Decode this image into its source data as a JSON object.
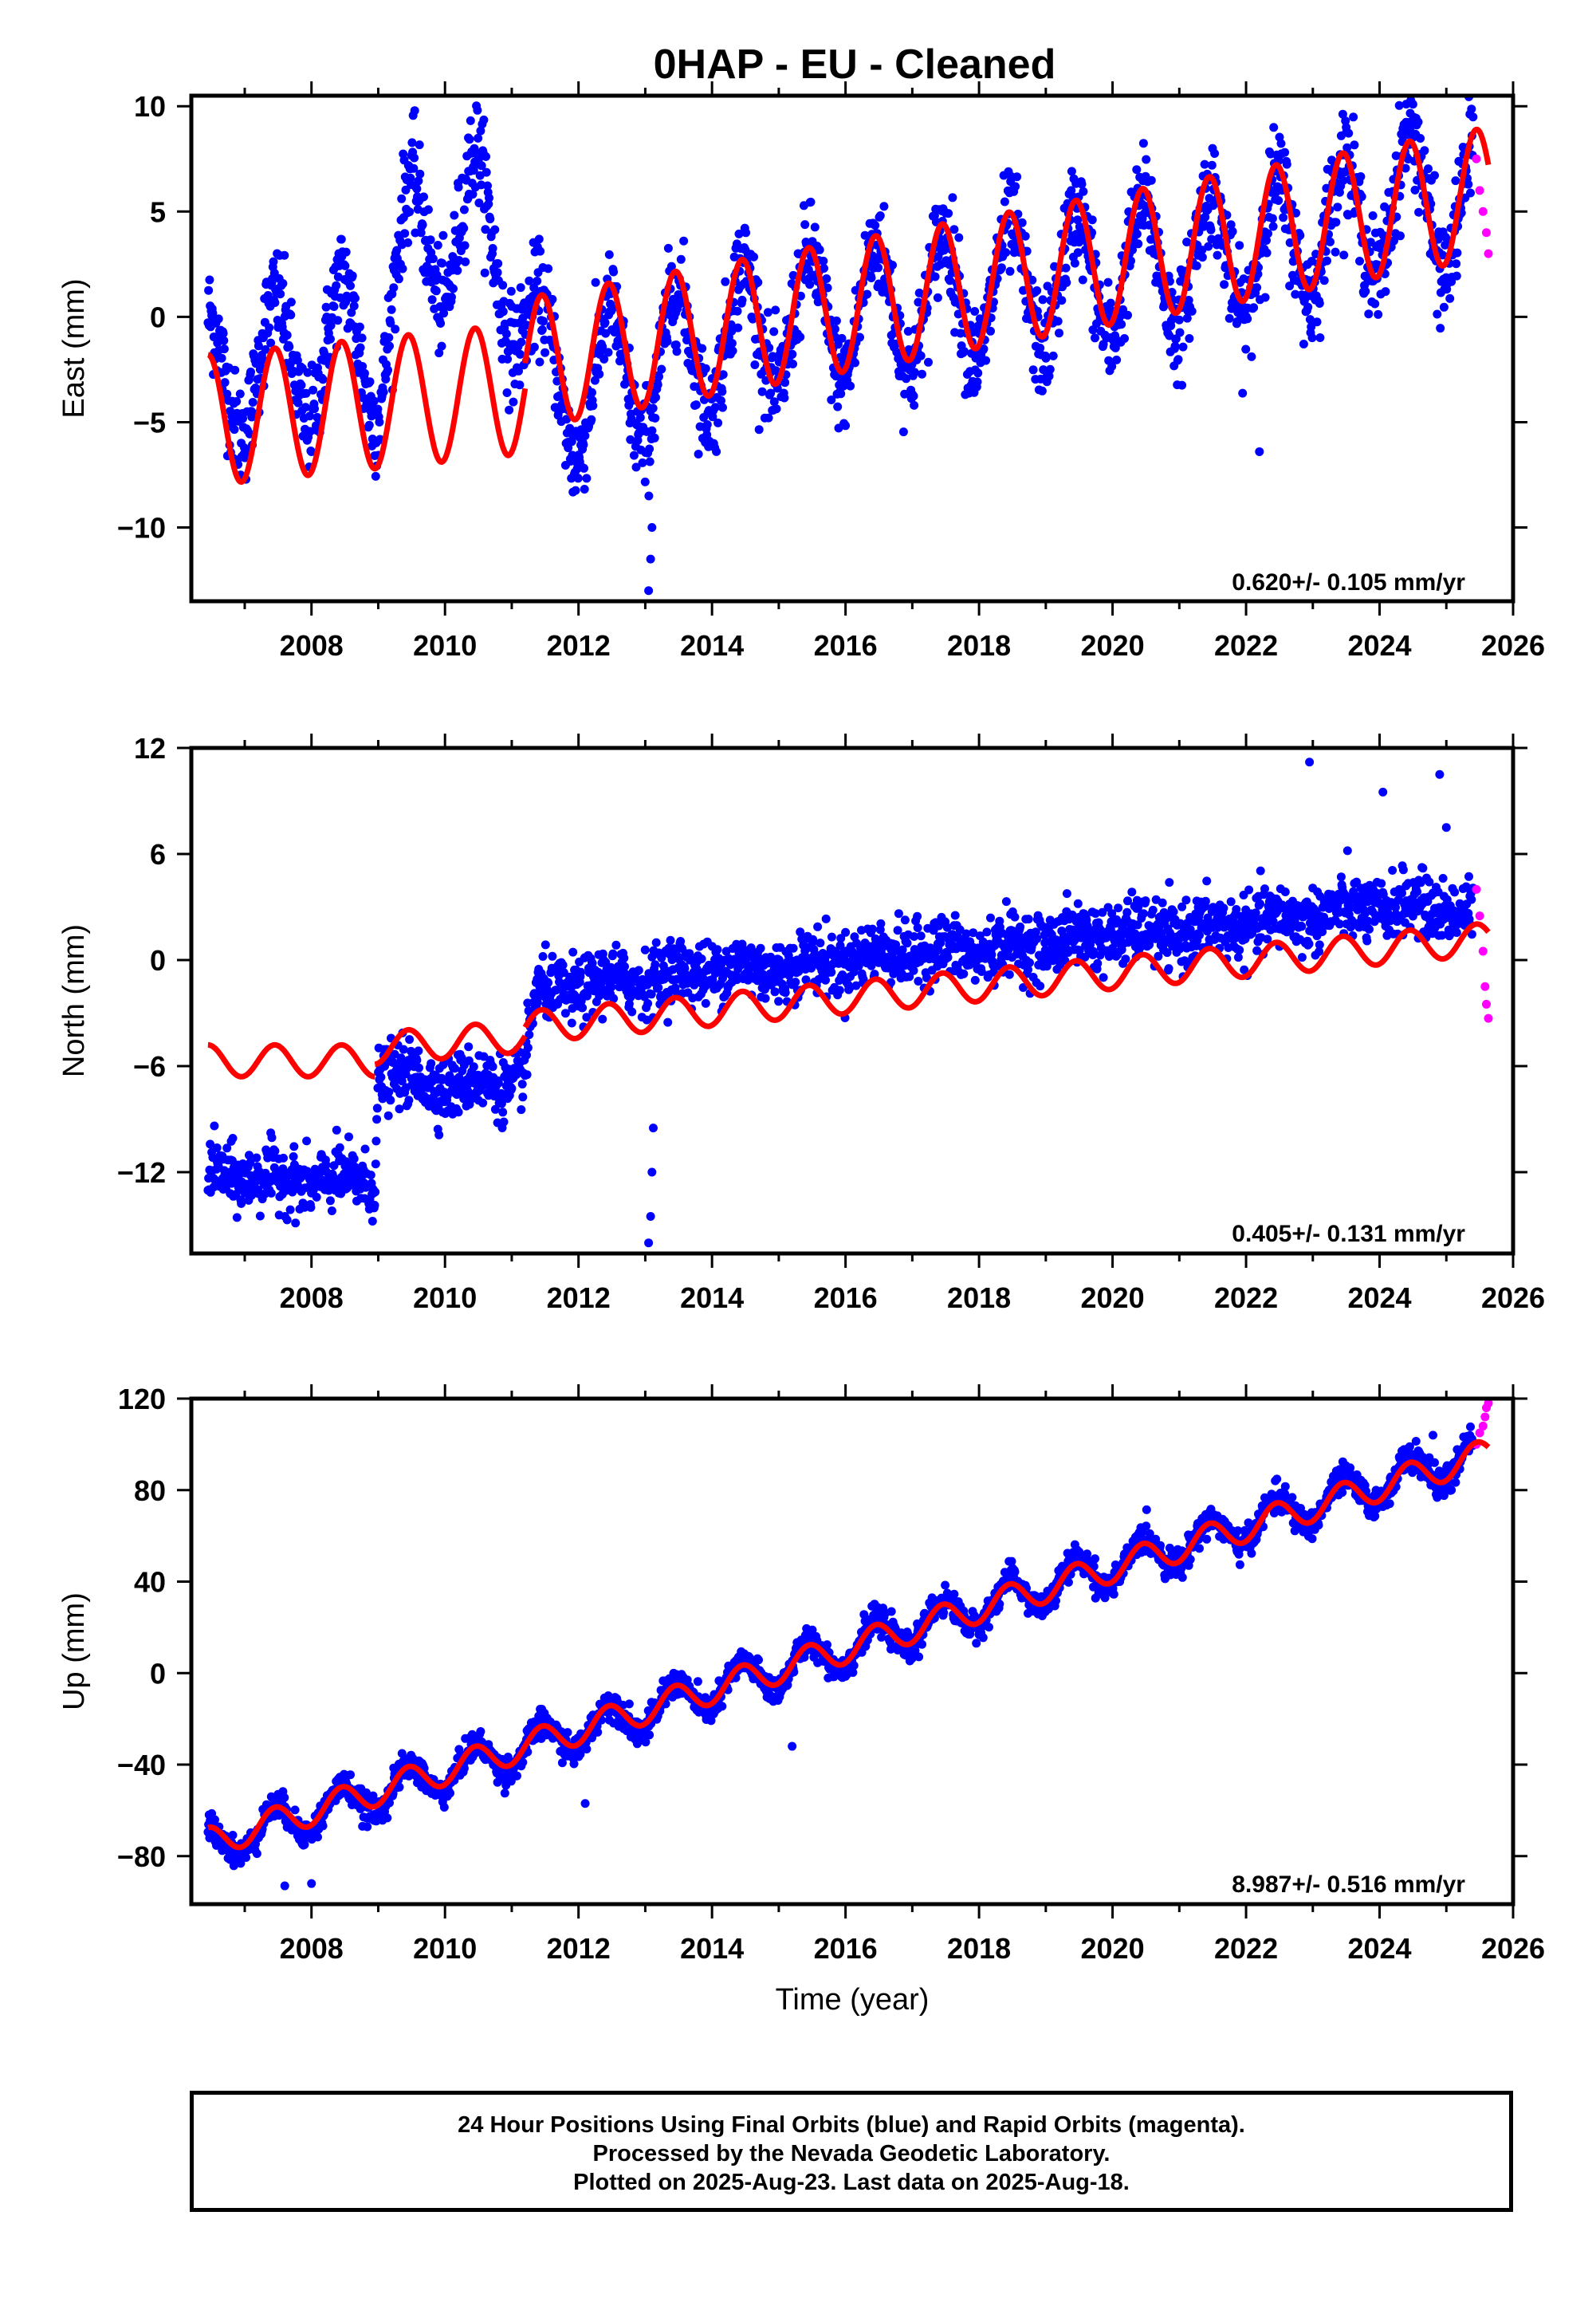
{
  "title": "0HAP  - EU - Cleaned",
  "footer": {
    "line1": "24 Hour Positions Using Final Orbits (blue) and Rapid Orbits (magenta).",
    "line2": "Processed by the Nevada Geodetic Laboratory.",
    "line3": "Plotted on 2025-Aug-23. Last data on 2025-Aug-18."
  },
  "colors": {
    "final": "#0000ff",
    "rapid": "#ff00ff",
    "model": "#ff0000",
    "axes": "#000000"
  },
  "chart_data": [
    {
      "type": "scatter",
      "component": "east",
      "ylabel": "East (mm)",
      "xlabel": "",
      "xlim": [
        2006.2,
        2026.0
      ],
      "ylim": [
        -13.5,
        10.5
      ],
      "xticks": [
        2008,
        2010,
        2012,
        2014,
        2016,
        2018,
        2020,
        2022,
        2024,
        2026
      ],
      "yticks": [
        10,
        5,
        0,
        -5,
        -10
      ],
      "rate_label": "0.620+/- 0.105 mm/yr",
      "data_start": 2006.45,
      "final_end": 2025.4,
      "rapid_end": 2025.63,
      "series": [
        {
          "key": "final",
          "description": "24 hour positions, final orbits (blue), approximate smoothed trend",
          "points": [
            [
              2006.5,
              -2.5
            ],
            [
              2007.0,
              -3.0
            ],
            [
              2007.5,
              -1.5
            ],
            [
              2008.0,
              -2.5
            ],
            [
              2008.5,
              -0.5
            ],
            [
              2009.0,
              -2.5
            ],
            [
              2009.5,
              4.5
            ],
            [
              2010.0,
              3.0
            ],
            [
              2010.5,
              5.5
            ],
            [
              2011.0,
              1.0
            ],
            [
              2011.3,
              -1.0
            ],
            [
              2012.0,
              -4.5
            ],
            [
              2012.5,
              -2.0
            ],
            [
              2013.0,
              -3.5
            ],
            [
              2013.5,
              -1.0
            ],
            [
              2014.0,
              -2.0
            ],
            [
              2014.5,
              0.0
            ],
            [
              2015.0,
              -1.0
            ],
            [
              2015.5,
              0.5
            ],
            [
              2016.0,
              -0.5
            ],
            [
              2016.5,
              1.0
            ],
            [
              2017.0,
              0.0
            ],
            [
              2017.5,
              1.5
            ],
            [
              2018.0,
              0.5
            ],
            [
              2018.5,
              2.0
            ],
            [
              2019.0,
              1.0
            ],
            [
              2019.5,
              2.5
            ],
            [
              2020.0,
              1.5
            ],
            [
              2020.5,
              3.0
            ],
            [
              2021.0,
              2.0
            ],
            [
              2021.5,
              3.5
            ],
            [
              2022.0,
              2.5
            ],
            [
              2022.5,
              4.0
            ],
            [
              2023.0,
              3.5
            ],
            [
              2023.5,
              5.0
            ],
            [
              2024.0,
              4.5
            ],
            [
              2024.5,
              6.5
            ],
            [
              2025.0,
              4.5
            ],
            [
              2025.4,
              6.0
            ]
          ],
          "scatter_mm": 2.2,
          "annual_amp": 2.6,
          "outliers": [
            [
              2013.05,
              -13.0
            ],
            [
              2013.08,
              -11.5
            ],
            [
              2013.1,
              -10.0
            ],
            [
              2022.2,
              -6.4
            ],
            [
              2024.4,
              10.1
            ],
            [
              2023.5,
              9.0
            ],
            [
              2010.35,
              8.5
            ]
          ]
        },
        {
          "key": "rapid",
          "description": "rapid orbits (magenta)",
          "points": [
            [
              2025.45,
              7.5
            ],
            [
              2025.5,
              6.0
            ],
            [
              2025.55,
              5.0
            ],
            [
              2025.6,
              4.0
            ],
            [
              2025.63,
              3.0
            ]
          ]
        },
        {
          "key": "model",
          "description": "fitted model (red)",
          "segments": [
            [
              2006.45,
              2011.2
            ],
            [
              2011.2,
              2025.63
            ]
          ],
          "seg1_offset": [
            -4.9,
            -3.4
          ],
          "seg2_offset": [
            -2.2,
            5.9
          ],
          "annual_amp": 3.1
        }
      ]
    },
    {
      "type": "scatter",
      "component": "north",
      "ylabel": "North (mm)",
      "xlabel": "",
      "xlim": [
        2006.2,
        2026.0
      ],
      "ylim": [
        -16.6,
        12.0
      ],
      "xticks": [
        2008,
        2010,
        2012,
        2014,
        2016,
        2018,
        2020,
        2022,
        2024,
        2026
      ],
      "yticks": [
        12,
        6,
        0,
        -6,
        -12
      ],
      "rate_label": "0.405+/- 0.131 mm/yr",
      "data_start": 2006.45,
      "final_end": 2025.4,
      "rapid_end": 2025.63,
      "series": [
        {
          "key": "final",
          "description": "24 hour positions, final orbits (blue), approximate smoothed trend",
          "points": [
            [
              2006.5,
              -12.0
            ],
            [
              2007.5,
              -12.5
            ],
            [
              2008.5,
              -12.5
            ],
            [
              2008.95,
              -12.5
            ],
            [
              2009.0,
              -6.5
            ],
            [
              2010.0,
              -7.0
            ],
            [
              2011.0,
              -7.0
            ],
            [
              2011.2,
              -6.0
            ],
            [
              2011.35,
              -2.0
            ],
            [
              2012.0,
              -1.5
            ],
            [
              2013.0,
              -1.0
            ],
            [
              2014.0,
              -0.5
            ],
            [
              2015.0,
              -0.5
            ],
            [
              2016.0,
              0.0
            ],
            [
              2017.0,
              0.5
            ],
            [
              2018.0,
              0.5
            ],
            [
              2019.0,
              1.0
            ],
            [
              2020.0,
              1.5
            ],
            [
              2021.0,
              1.5
            ],
            [
              2022.0,
              2.0
            ],
            [
              2023.0,
              2.5
            ],
            [
              2024.0,
              3.0
            ],
            [
              2025.0,
              3.0
            ],
            [
              2025.4,
              2.5
            ]
          ],
          "scatter_mm": 1.6,
          "annual_amp": 0.3,
          "outliers": [
            [
              2013.05,
              -16.0
            ],
            [
              2013.08,
              -14.5
            ],
            [
              2013.1,
              -12.0
            ],
            [
              2013.12,
              -9.5
            ],
            [
              2022.95,
              11.2
            ],
            [
              2024.9,
              10.5
            ],
            [
              2024.05,
              9.5
            ],
            [
              2025.0,
              7.5
            ]
          ]
        },
        {
          "key": "rapid",
          "description": "rapid orbits (magenta)",
          "points": [
            [
              2025.45,
              4.0
            ],
            [
              2025.5,
              2.5
            ],
            [
              2025.55,
              0.5
            ],
            [
              2025.58,
              -1.5
            ],
            [
              2025.6,
              -2.5
            ],
            [
              2025.63,
              -3.3
            ]
          ]
        },
        {
          "key": "model",
          "description": "fitted model (red)",
          "segments": [
            [
              2006.45,
              2008.95
            ],
            [
              2008.95,
              2011.2
            ],
            [
              2011.2,
              2025.63
            ]
          ],
          "seg1_offset": [
            -5.7,
            -5.7
          ],
          "seg2_offset": [
            -5.0,
            -4.3
          ],
          "seg3_offset": [
            -3.8,
            1.2
          ],
          "annual_amp": 0.9
        }
      ]
    },
    {
      "type": "scatter",
      "component": "up",
      "ylabel": "Up (mm)",
      "xlabel": "Time (year)",
      "xlim": [
        2006.2,
        2026.0
      ],
      "ylim": [
        -101.0,
        120.0
      ],
      "xticks": [
        2008,
        2010,
        2012,
        2014,
        2016,
        2018,
        2020,
        2022,
        2024,
        2026
      ],
      "yticks": [
        120,
        80,
        40,
        0,
        -40,
        -80
      ],
      "rate_label": "8.987+/- 0.516 mm/yr",
      "data_start": 2006.45,
      "final_end": 2025.4,
      "rapid_end": 2025.63,
      "series": [
        {
          "key": "final",
          "description": "24 hour positions, final orbits (blue), approximate smoothed trend",
          "points": [
            [
              2006.5,
              -75.0
            ],
            [
              2025.4,
              95.0
            ]
          ],
          "scatter_mm": 5.5,
          "annual_amp": 8.0,
          "outliers": [
            [
              2007.6,
              -93.0
            ],
            [
              2008.0,
              -92.0
            ],
            [
              2012.1,
              -57.0
            ],
            [
              2015.2,
              -32.0
            ],
            [
              2021.2,
              60.0
            ],
            [
              2024.8,
              104.0
            ]
          ]
        },
        {
          "key": "rapid",
          "description": "rapid orbits (magenta)",
          "points": [
            [
              2025.45,
              100.0
            ],
            [
              2025.5,
              105.0
            ],
            [
              2025.55,
              108.0
            ],
            [
              2025.58,
              112.0
            ],
            [
              2025.6,
              116.0
            ],
            [
              2025.63,
              118.0
            ]
          ]
        },
        {
          "key": "model",
          "description": "fitted model (red)",
          "segments": [
            [
              2006.45,
              2025.63
            ]
          ],
          "seg1_offset": [
            -74.0,
            96.0
          ],
          "annual_amp": 6.5
        }
      ]
    }
  ]
}
